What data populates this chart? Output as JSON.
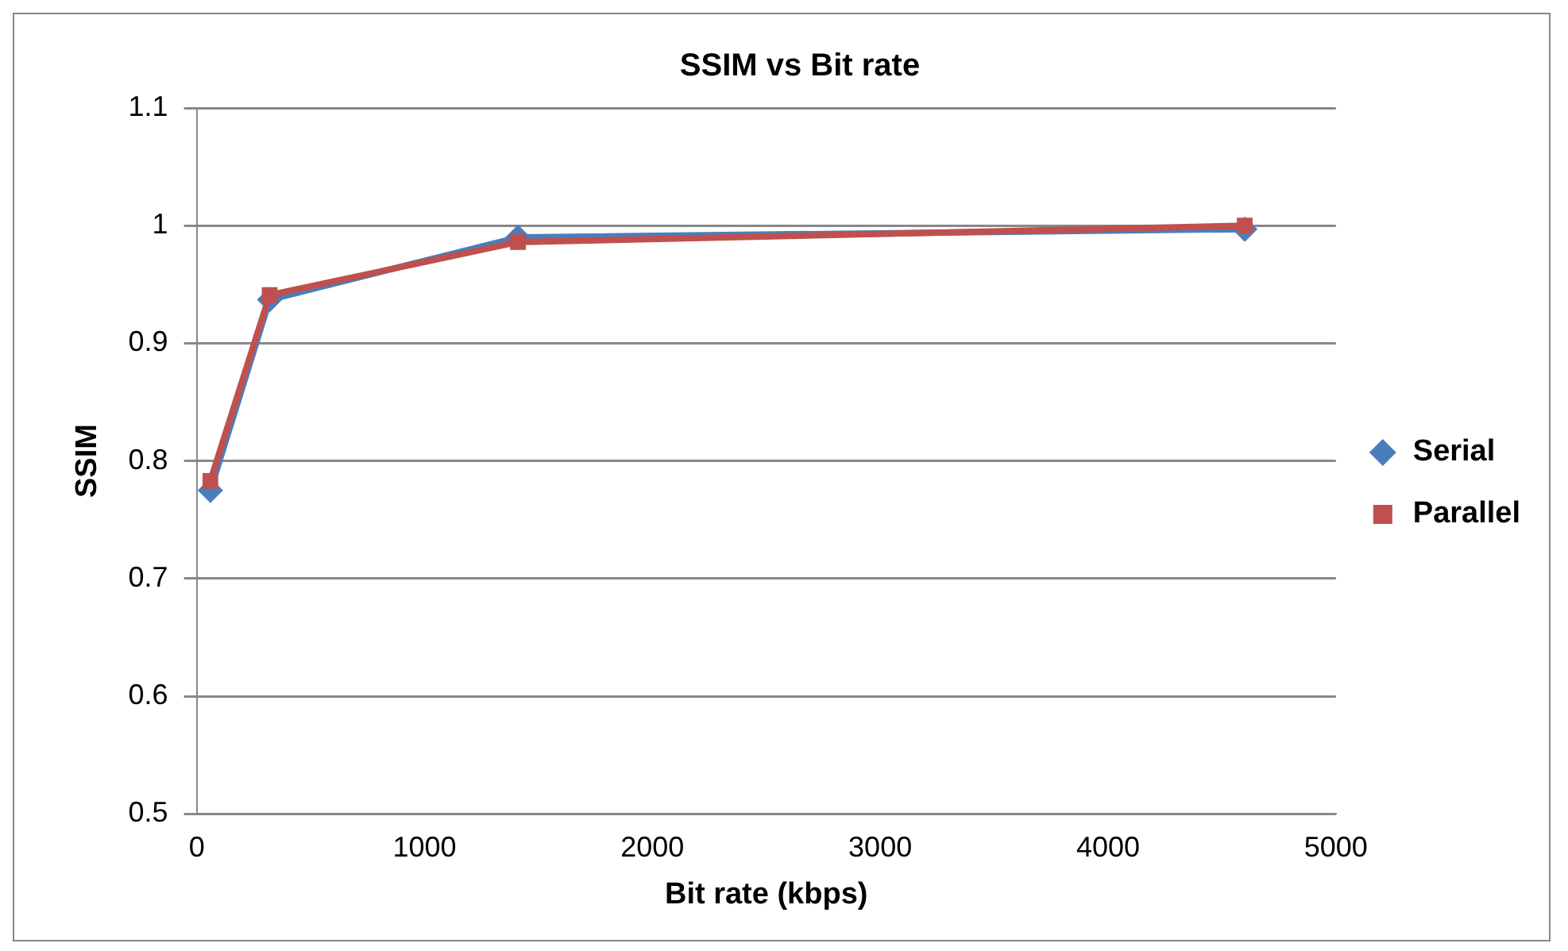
{
  "chart_data": {
    "type": "line",
    "title": "SSIM vs Bit rate",
    "xlabel": "Bit rate (kbps)",
    "ylabel": "SSIM",
    "x": [
      60,
      320,
      1410,
      4600
    ],
    "series": [
      {
        "name": "Serial",
        "color": "#4a7ebb",
        "values": [
          0.775,
          0.937,
          0.99,
          0.997
        ],
        "marker": "diamond"
      },
      {
        "name": "Parallel",
        "color": "#c0504d",
        "values": [
          0.783,
          0.941,
          0.986,
          1.0
        ],
        "marker": "square"
      }
    ],
    "xlim": [
      0,
      5000
    ],
    "xticks": [
      0,
      1000,
      2000,
      3000,
      4000,
      5000
    ],
    "ylim": [
      0.5,
      1.1
    ],
    "yticks": [
      0.5,
      0.6,
      0.7,
      0.8,
      0.9,
      1,
      1.1
    ],
    "grid": "y",
    "legend": "right",
    "line_style": "solid"
  }
}
